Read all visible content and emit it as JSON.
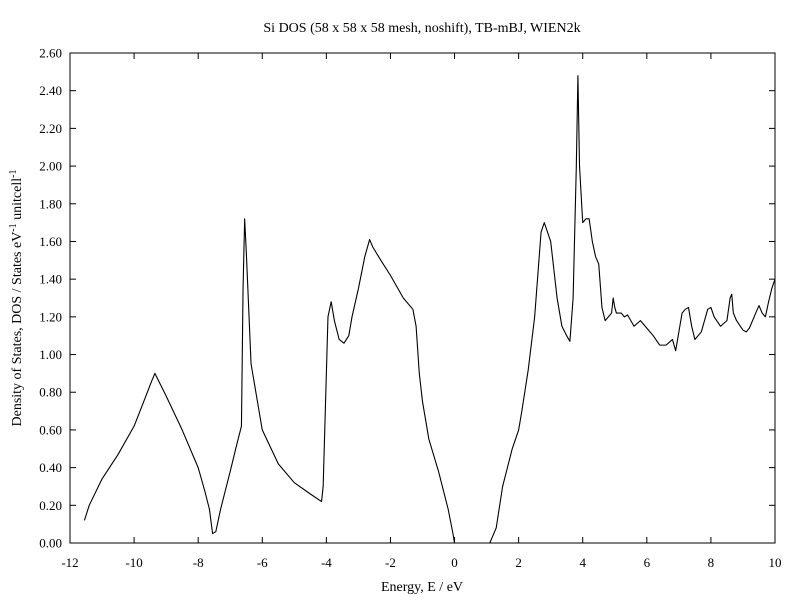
{
  "chart_data": {
    "type": "line",
    "title": "Si DOS (58 x 58 x 58 mesh, noshift), TB-mBJ, WIEN2k",
    "xlabel": "Energy, E / eV",
    "ylabel_main": "Density of States, DOS / States eV",
    "ylabel_sup1": "-1",
    "ylabel_mid": " unitcell",
    "ylabel_sup2": "-1",
    "xlim": [
      -12,
      10
    ],
    "ylim": [
      0,
      2.6
    ],
    "x_ticks": [
      -12,
      -10,
      -8,
      -6,
      -4,
      -2,
      0,
      2,
      4,
      6,
      8,
      10
    ],
    "x_tick_labels": [
      "-12",
      "-10",
      "-8",
      "-6",
      "-4",
      "-2",
      "0",
      "2",
      "4",
      "6",
      "8",
      "10"
    ],
    "y_ticks": [
      0,
      0.2,
      0.4,
      0.6,
      0.8,
      1.0,
      1.2,
      1.4,
      1.6,
      1.8,
      2.0,
      2.2,
      2.4,
      2.6
    ],
    "y_tick_labels": [
      "0.00",
      "0.20",
      "0.40",
      "0.60",
      "0.80",
      "1.00",
      "1.20",
      "1.40",
      "1.60",
      "1.80",
      "2.00",
      "2.20",
      "2.40",
      "2.60"
    ],
    "grid": false,
    "line_color": "#000000",
    "series": [
      {
        "x": [
          -11.55,
          -11.4,
          -11.0,
          -10.5,
          -10.0,
          -9.7,
          -9.45,
          -9.35,
          -9.0,
          -8.5,
          -8.0,
          -7.8,
          -7.65,
          -7.55,
          -7.45,
          -7.3,
          -7.0,
          -6.8,
          -6.65,
          -6.6,
          -6.55,
          -6.5,
          -6.35,
          -6.0,
          -5.5,
          -5.0,
          -4.5,
          -4.15,
          -4.1,
          -3.95,
          -3.85,
          -3.75,
          -3.6,
          -3.45,
          -3.3,
          -3.2,
          -3.0,
          -2.8,
          -2.65,
          -2.55,
          -2.3,
          -2.0,
          -1.6,
          -1.3,
          -1.2,
          -1.1,
          -1.0,
          -0.8,
          -0.5,
          -0.2,
          -0.05,
          0.0,
          0.01,
          0.6,
          1.1,
          1.3,
          1.5,
          1.8,
          2.0,
          2.1,
          2.3,
          2.5,
          2.7,
          2.8,
          3.0,
          3.2,
          3.35,
          3.5,
          3.6,
          3.7,
          3.8,
          3.85,
          3.9,
          4.0,
          4.1,
          4.2,
          4.3,
          4.4,
          4.5,
          4.6,
          4.7,
          4.8,
          4.9,
          4.95,
          5.0,
          5.05,
          5.1,
          5.2,
          5.3,
          5.4,
          5.5,
          5.6,
          5.8,
          6.0,
          6.2,
          6.4,
          6.6,
          6.8,
          6.9,
          7.0,
          7.1,
          7.2,
          7.3,
          7.4,
          7.5,
          7.7,
          7.8,
          7.9,
          8.0,
          8.1,
          8.3,
          8.5,
          8.6,
          8.65,
          8.7,
          8.8,
          9.0,
          9.1,
          9.2,
          9.4,
          9.5,
          9.6,
          9.7,
          9.8,
          9.9,
          10.0
        ],
        "y": [
          0.12,
          0.2,
          0.34,
          0.47,
          0.62,
          0.75,
          0.86,
          0.9,
          0.78,
          0.6,
          0.4,
          0.28,
          0.18,
          0.05,
          0.06,
          0.18,
          0.38,
          0.52,
          0.62,
          1.35,
          1.72,
          1.55,
          0.95,
          0.6,
          0.42,
          0.32,
          0.26,
          0.22,
          0.3,
          1.2,
          1.28,
          1.18,
          1.08,
          1.06,
          1.1,
          1.2,
          1.35,
          1.52,
          1.61,
          1.57,
          1.5,
          1.42,
          1.3,
          1.24,
          1.15,
          0.9,
          0.75,
          0.55,
          0.38,
          0.18,
          0.05,
          0.0,
          0.0,
          0.0,
          0.0,
          0.08,
          0.3,
          0.5,
          0.6,
          0.7,
          0.92,
          1.2,
          1.65,
          1.7,
          1.6,
          1.3,
          1.15,
          1.1,
          1.07,
          1.3,
          2.0,
          2.48,
          2.0,
          1.7,
          1.72,
          1.72,
          1.6,
          1.52,
          1.48,
          1.25,
          1.18,
          1.2,
          1.22,
          1.3,
          1.25,
          1.22,
          1.22,
          1.22,
          1.2,
          1.21,
          1.18,
          1.15,
          1.18,
          1.14,
          1.1,
          1.05,
          1.05,
          1.08,
          1.02,
          1.12,
          1.22,
          1.24,
          1.25,
          1.15,
          1.08,
          1.12,
          1.18,
          1.24,
          1.25,
          1.2,
          1.15,
          1.18,
          1.3,
          1.32,
          1.22,
          1.18,
          1.13,
          1.12,
          1.14,
          1.22,
          1.26,
          1.22,
          1.2,
          1.28,
          1.35,
          1.4
        ]
      }
    ]
  }
}
